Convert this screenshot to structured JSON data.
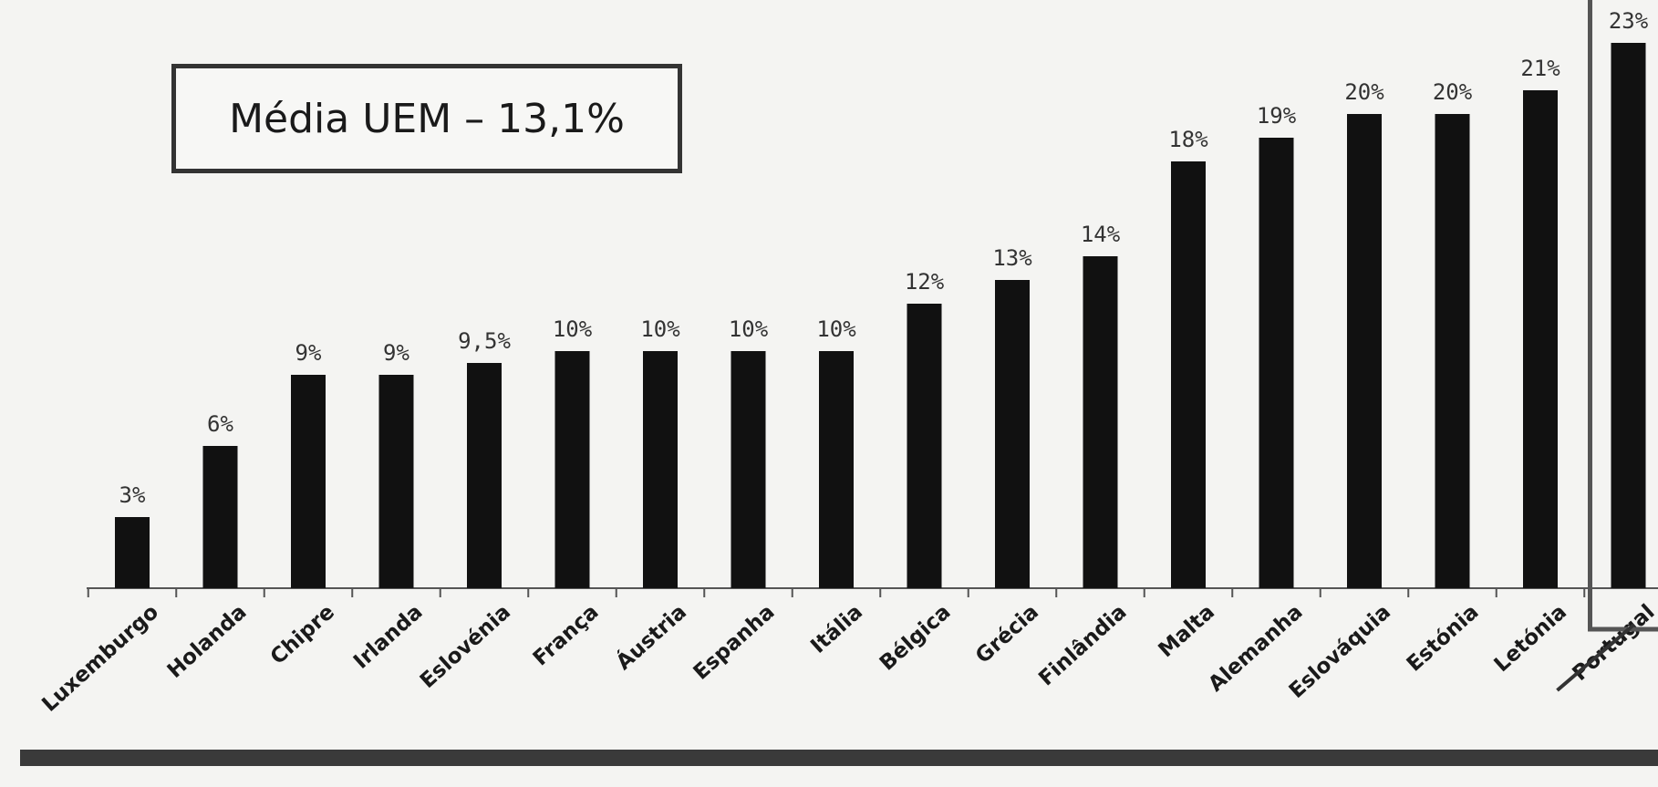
{
  "annotation": {
    "text": "Média UEM – 13,1%"
  },
  "chart_data": {
    "type": "bar",
    "categories": [
      "Luxemburgo",
      "Holanda",
      "Chipre",
      "Irlanda",
      "Eslovénia",
      "França",
      "Áustria",
      "Espanha",
      "Itália",
      "Bélgica",
      "Grécia",
      "Finlândia",
      "Malta",
      "Alemanha",
      "Eslováquia",
      "Estónia",
      "Letónia",
      "Portugal"
    ],
    "values": [
      3,
      6,
      9,
      9,
      9.5,
      10,
      10,
      10,
      10,
      12,
      13,
      14,
      18,
      19,
      20,
      20,
      21,
      23
    ],
    "data_labels": [
      "3%",
      "6%",
      "9%",
      "9%",
      "9,5%",
      "10%",
      "10%",
      "10%",
      "10%",
      "12%",
      "13%",
      "14%",
      "18%",
      "19%",
      "20%",
      "20%",
      "21%",
      "23%"
    ],
    "highlighted_category": "Portugal",
    "title": "",
    "xlabel": "",
    "ylabel": "",
    "ylim": [
      0,
      24
    ],
    "grid": false,
    "legend": "none",
    "colors": {
      "bar": "#111111",
      "highlight_frame": "#555555",
      "axis": "#555555",
      "bottom_band": "#3a3a3a"
    }
  }
}
